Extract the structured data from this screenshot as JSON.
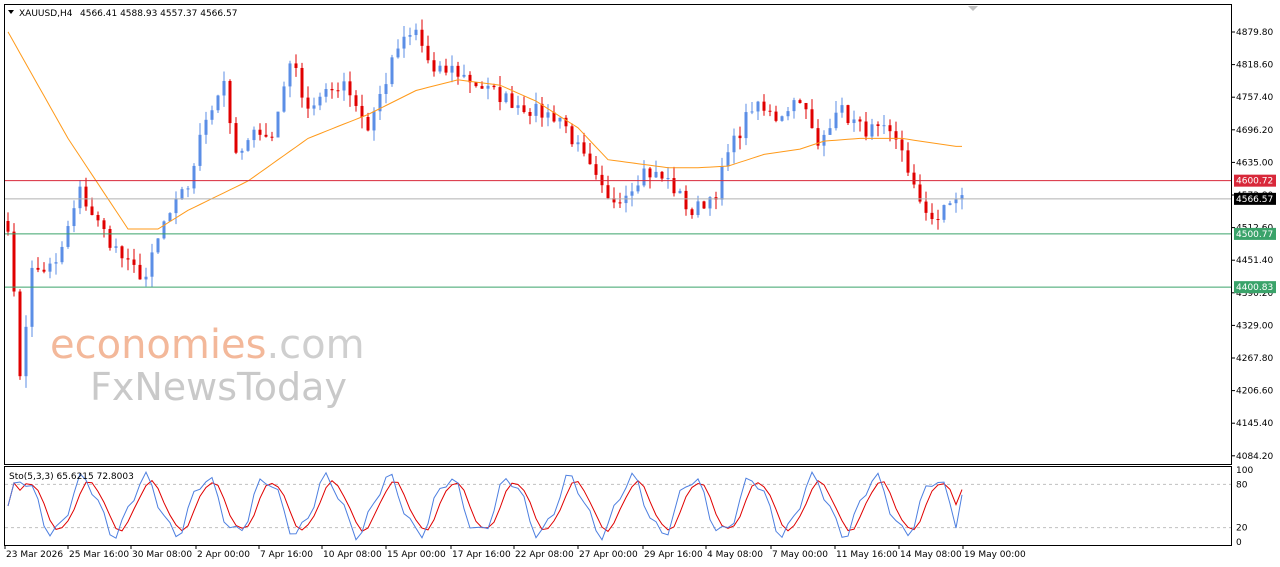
{
  "header": {
    "symbol": "XAUUSD,H4",
    "ohlc": "4566.41 4588.93 4557.37 4566.57"
  },
  "watermark": {
    "line1_a": "economies",
    "line1_b": ".com",
    "line2": "FxNewsToday"
  },
  "oscillator": {
    "label": "Sto(5,3,3) 65.6215 72.8003",
    "levels": [
      "100",
      "80",
      "20",
      "0"
    ]
  },
  "colors": {
    "bull": "#5b8ee6",
    "bear": "#e00000",
    "ma": "#ff9a1a",
    "resistance": "#d8283a",
    "support": "#3aa36a",
    "current": "#000000",
    "stoch_main": "#4d7fe0",
    "stoch_signal": "#e00000"
  },
  "chart_data": {
    "type": "candlestick",
    "symbol": "XAUUSD",
    "timeframe": "H4",
    "y_ticks": [
      "4879.80",
      "4818.60",
      "4757.40",
      "4696.20",
      "4635.00",
      "4573.80",
      "4512.60",
      "4451.40",
      "4390.20",
      "4329.00",
      "4267.80",
      "4206.60",
      "4145.40",
      "4084.20"
    ],
    "ylim": [
      4084.2,
      4900
    ],
    "x_labels": [
      "23 Mar 2026",
      "25 Mar 16:00",
      "30 Mar 08:00",
      "2 Apr 00:00",
      "7 Apr 16:00",
      "10 Apr 08:00",
      "15 Apr 00:00",
      "17 Apr 16:00",
      "22 Apr 08:00",
      "27 Apr 00:00",
      "29 Apr 16:00",
      "4 May 08:00",
      "7 May 00:00",
      "11 May 16:00",
      "14 May 08:00",
      "19 May 00:00"
    ],
    "levels": [
      {
        "label": "4600.72",
        "value": 4600.72,
        "kind": "resistance"
      },
      {
        "label": "4566.57",
        "value": 4566.57,
        "kind": "current"
      },
      {
        "label": "4500.77",
        "value": 4500.77,
        "kind": "support"
      },
      {
        "label": "4400.83",
        "value": 4400.83,
        "kind": "support"
      }
    ],
    "close_path": [
      [
        0,
        4520
      ],
      [
        2,
        4240
      ],
      [
        4,
        4430
      ],
      [
        8,
        4440
      ],
      [
        12,
        4580
      ],
      [
        15,
        4520
      ],
      [
        20,
        4440
      ],
      [
        23,
        4420
      ],
      [
        26,
        4520
      ],
      [
        30,
        4590
      ],
      [
        33,
        4720
      ],
      [
        36,
        4790
      ],
      [
        38,
        4640
      ],
      [
        42,
        4700
      ],
      [
        44,
        4680
      ],
      [
        47,
        4830
      ],
      [
        50,
        4740
      ],
      [
        53,
        4760
      ],
      [
        56,
        4790
      ],
      [
        60,
        4700
      ],
      [
        62,
        4760
      ],
      [
        65,
        4850
      ],
      [
        68,
        4880
      ],
      [
        71,
        4800
      ],
      [
        74,
        4810
      ],
      [
        77,
        4790
      ],
      [
        80,
        4770
      ],
      [
        84,
        4750
      ],
      [
        88,
        4730
      ],
      [
        92,
        4720
      ],
      [
        96,
        4640
      ],
      [
        100,
        4560
      ],
      [
        103,
        4580
      ],
      [
        106,
        4620
      ],
      [
        110,
        4600
      ],
      [
        114,
        4540
      ],
      [
        118,
        4580
      ],
      [
        120,
        4650
      ],
      [
        124,
        4740
      ],
      [
        128,
        4720
      ],
      [
        132,
        4760
      ],
      [
        135,
        4660
      ],
      [
        138,
        4740
      ],
      [
        142,
        4700
      ],
      [
        146,
        4690
      ],
      [
        149,
        4660
      ],
      [
        152,
        4550
      ],
      [
        155,
        4530
      ],
      [
        158,
        4570
      ]
    ],
    "ma_path": [
      [
        0,
        4880
      ],
      [
        10,
        4680
      ],
      [
        20,
        4510
      ],
      [
        25,
        4510
      ],
      [
        30,
        4545
      ],
      [
        40,
        4600
      ],
      [
        50,
        4680
      ],
      [
        60,
        4725
      ],
      [
        68,
        4770
      ],
      [
        75,
        4790
      ],
      [
        82,
        4780
      ],
      [
        88,
        4750
      ],
      [
        95,
        4700
      ],
      [
        100,
        4640
      ],
      [
        110,
        4625
      ],
      [
        115,
        4625
      ],
      [
        120,
        4628
      ],
      [
        126,
        4650
      ],
      [
        132,
        4660
      ],
      [
        136,
        4675
      ],
      [
        142,
        4680
      ],
      [
        149,
        4680
      ],
      [
        158,
        4665
      ]
    ],
    "stochastic": {
      "k_period": 5,
      "d_period": 3,
      "slowing": 3,
      "main": 65.6215,
      "signal": 72.8003,
      "levels": [
        80,
        20
      ]
    }
  }
}
